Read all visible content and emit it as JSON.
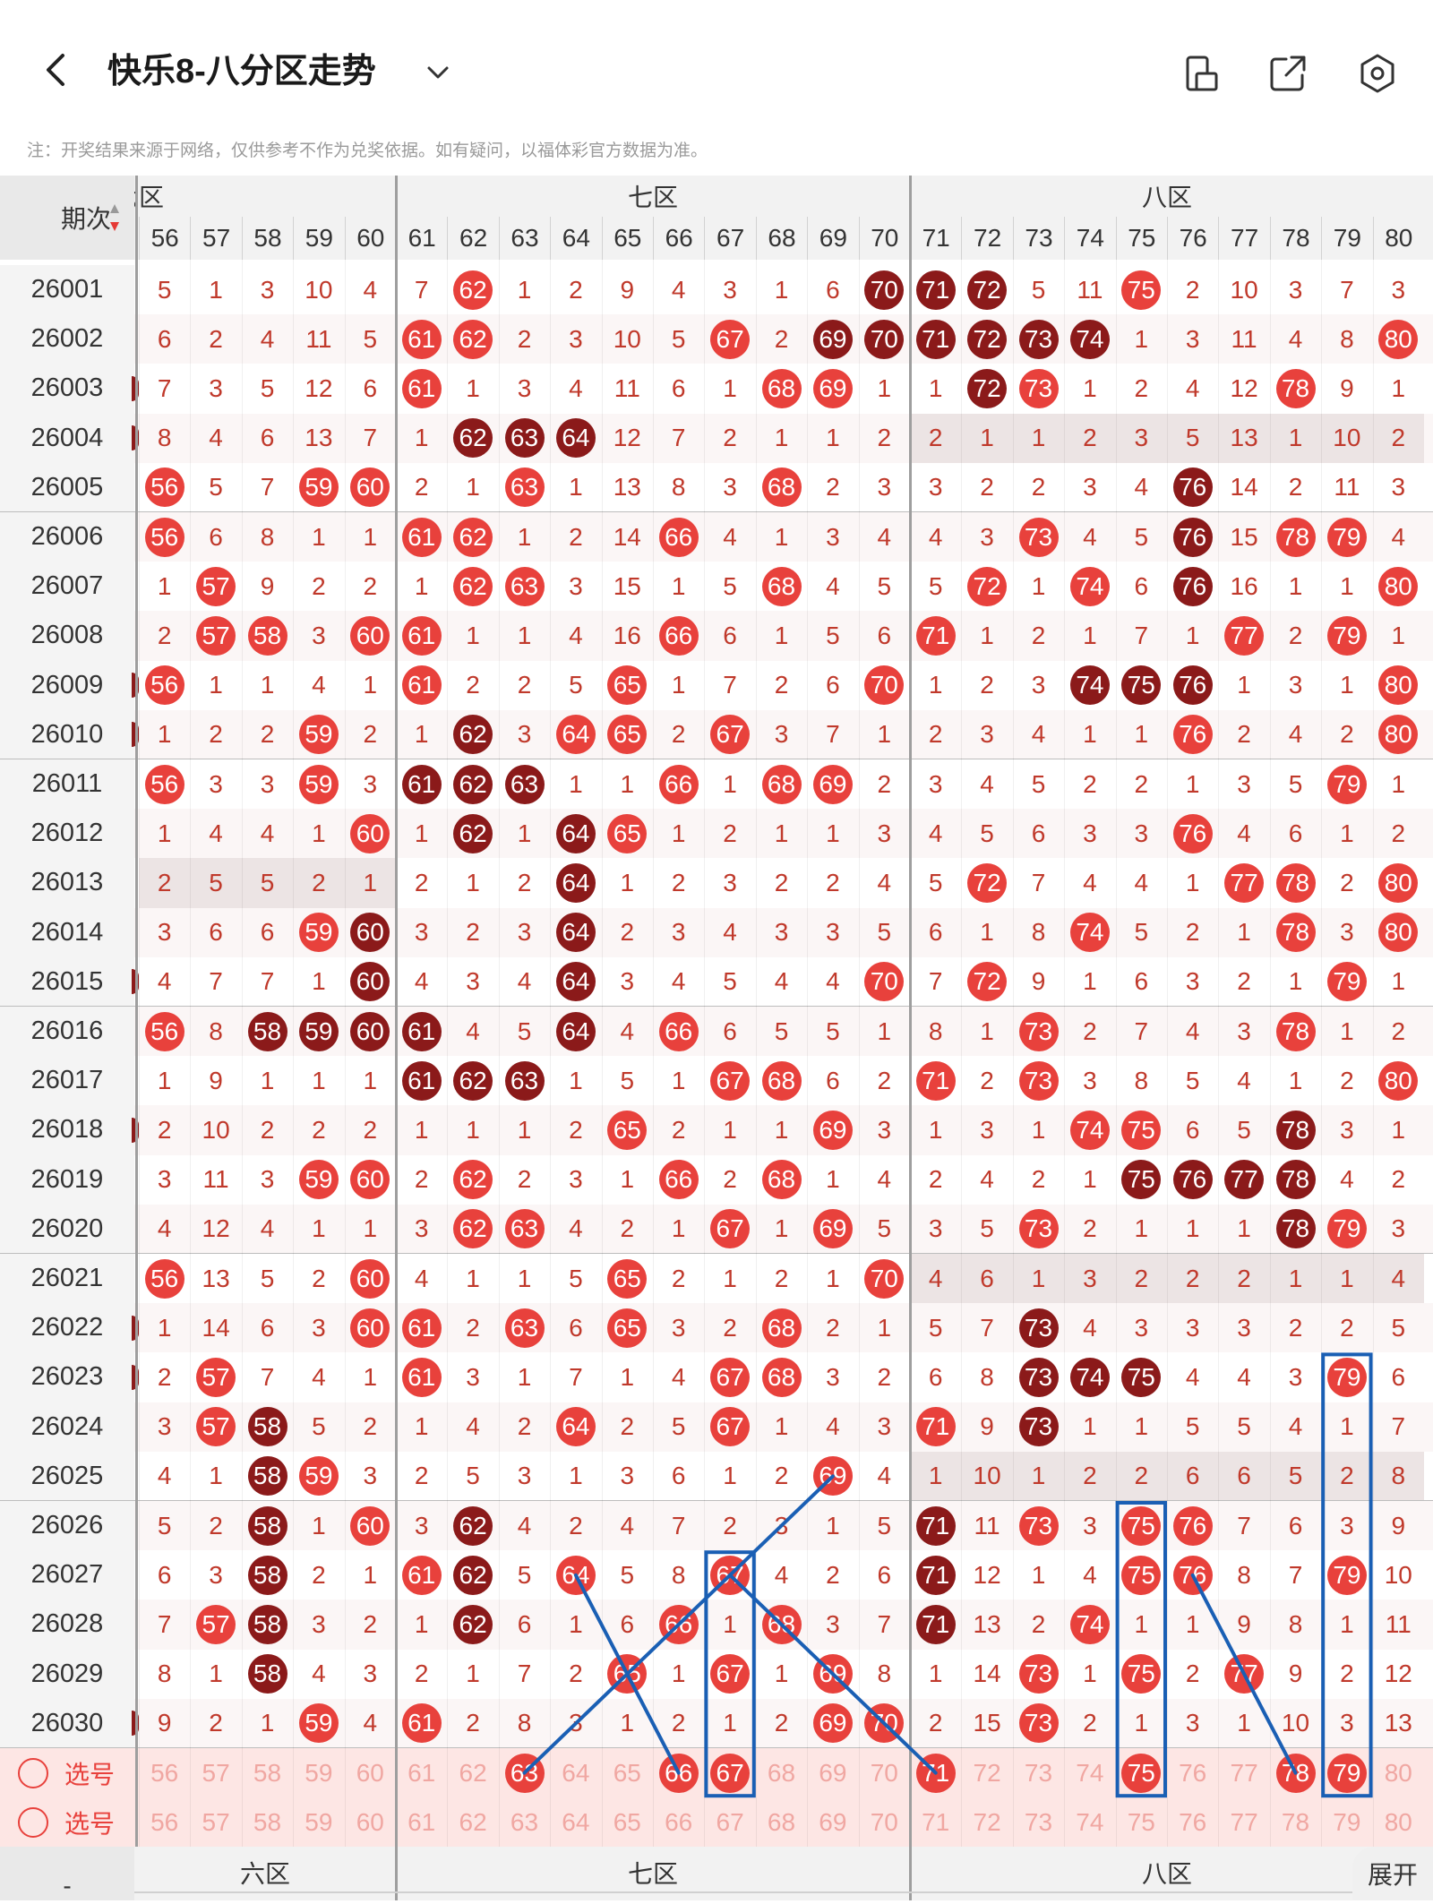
{
  "app": {
    "title": "快乐8-八分区走势",
    "notice": "注：开奖结果来源于网络，仅供参考不作为兑奖依据。如有疑问，以福体彩官方数据为准。",
    "icons": [
      "back-arrow-icon",
      "chevron-down-icon",
      "phone-layout-icon",
      "share-icon",
      "settings-icon"
    ]
  },
  "table": {
    "period_header": "期次",
    "sort_icon": "sort-up-down-icon",
    "zones": [
      {
        "label": "六区",
        "visible_label": "六区",
        "numbers": [
          56,
          57,
          58,
          59,
          60
        ]
      },
      {
        "label": "七区",
        "visible_label": "七区",
        "numbers": [
          61,
          62,
          63,
          64,
          65,
          66,
          67,
          68,
          69,
          70
        ]
      },
      {
        "label": "八区",
        "visible_label": "八区",
        "numbers": [
          71,
          72,
          73,
          74,
          75,
          76,
          77,
          78,
          79,
          80
        ]
      }
    ],
    "columns": [
      56,
      57,
      58,
      59,
      60,
      61,
      62,
      63,
      64,
      65,
      66,
      67,
      68,
      69,
      70,
      71,
      72,
      73,
      74,
      75,
      76,
      77,
      78,
      79,
      80
    ],
    "rows": [
      {
        "period": "26001",
        "cells": [
          5,
          1,
          3,
          10,
          4,
          7,
          62,
          1,
          2,
          9,
          4,
          3,
          1,
          6,
          70,
          71,
          72,
          5,
          11,
          75,
          2,
          10,
          3,
          7,
          3
        ]
      },
      {
        "period": "26002",
        "cells": [
          6,
          2,
          4,
          11,
          5,
          61,
          62,
          2,
          3,
          10,
          5,
          67,
          2,
          69,
          70,
          71,
          72,
          73,
          74,
          1,
          3,
          11,
          4,
          8,
          80
        ]
      },
      {
        "period": "26003",
        "cells": [
          7,
          3,
          5,
          12,
          6,
          61,
          1,
          3,
          4,
          11,
          6,
          1,
          68,
          69,
          1,
          1,
          72,
          73,
          1,
          2,
          4,
          12,
          78,
          9,
          1
        ]
      },
      {
        "period": "26004",
        "cells": [
          8,
          4,
          6,
          13,
          7,
          1,
          62,
          63,
          64,
          12,
          7,
          2,
          1,
          1,
          2,
          2,
          1,
          1,
          2,
          3,
          5,
          13,
          1,
          10,
          2
        ]
      },
      {
        "period": "26005",
        "cells": [
          56,
          5,
          7,
          59,
          60,
          2,
          1,
          63,
          1,
          13,
          8,
          3,
          68,
          2,
          3,
          3,
          2,
          2,
          3,
          4,
          76,
          14,
          2,
          11,
          3
        ]
      },
      {
        "period": "26006",
        "cells": [
          56,
          6,
          8,
          1,
          1,
          61,
          62,
          1,
          2,
          14,
          66,
          4,
          1,
          3,
          4,
          4,
          3,
          73,
          4,
          5,
          76,
          15,
          78,
          79,
          4
        ]
      },
      {
        "period": "26007",
        "cells": [
          1,
          57,
          9,
          2,
          2,
          1,
          62,
          63,
          3,
          15,
          1,
          5,
          68,
          4,
          5,
          5,
          72,
          1,
          74,
          6,
          76,
          16,
          1,
          1,
          80
        ]
      },
      {
        "period": "26008",
        "cells": [
          2,
          57,
          58,
          3,
          60,
          61,
          1,
          1,
          4,
          16,
          66,
          6,
          1,
          5,
          6,
          71,
          1,
          2,
          1,
          7,
          1,
          77,
          2,
          79,
          1
        ]
      },
      {
        "period": "26009",
        "cells": [
          56,
          1,
          1,
          4,
          1,
          61,
          2,
          2,
          5,
          65,
          1,
          7,
          2,
          6,
          70,
          1,
          2,
          3,
          74,
          75,
          76,
          1,
          3,
          1,
          80
        ]
      },
      {
        "period": "26010",
        "cells": [
          1,
          2,
          2,
          59,
          2,
          1,
          62,
          3,
          64,
          65,
          2,
          67,
          3,
          7,
          1,
          2,
          3,
          4,
          1,
          1,
          76,
          2,
          4,
          2,
          80
        ]
      },
      {
        "period": "26011",
        "cells": [
          56,
          3,
          3,
          59,
          3,
          61,
          62,
          63,
          1,
          1,
          66,
          1,
          68,
          69,
          2,
          3,
          4,
          5,
          2,
          2,
          1,
          3,
          5,
          79,
          1
        ]
      },
      {
        "period": "26012",
        "cells": [
          1,
          4,
          4,
          1,
          60,
          1,
          62,
          1,
          64,
          65,
          1,
          2,
          1,
          1,
          3,
          4,
          5,
          6,
          3,
          3,
          76,
          4,
          6,
          1,
          2
        ]
      },
      {
        "period": "26013",
        "cells": [
          2,
          5,
          5,
          2,
          1,
          2,
          1,
          2,
          64,
          1,
          2,
          3,
          2,
          2,
          4,
          5,
          72,
          7,
          4,
          4,
          1,
          77,
          78,
          2,
          80
        ]
      },
      {
        "period": "26014",
        "cells": [
          3,
          6,
          6,
          59,
          60,
          3,
          2,
          3,
          64,
          2,
          3,
          4,
          3,
          3,
          5,
          6,
          1,
          8,
          74,
          5,
          2,
          1,
          78,
          3,
          80
        ]
      },
      {
        "period": "26015",
        "cells": [
          4,
          7,
          7,
          1,
          60,
          4,
          3,
          4,
          64,
          3,
          4,
          5,
          4,
          4,
          70,
          7,
          72,
          9,
          1,
          6,
          3,
          2,
          1,
          79,
          1
        ]
      },
      {
        "period": "26016",
        "cells": [
          56,
          8,
          58,
          59,
          60,
          61,
          4,
          5,
          64,
          4,
          66,
          6,
          5,
          5,
          1,
          8,
          1,
          73,
          2,
          7,
          4,
          3,
          78,
          1,
          2
        ]
      },
      {
        "period": "26017",
        "cells": [
          1,
          9,
          1,
          1,
          1,
          61,
          62,
          63,
          1,
          5,
          1,
          67,
          68,
          6,
          2,
          71,
          2,
          73,
          3,
          8,
          5,
          4,
          1,
          2,
          80
        ]
      },
      {
        "period": "26018",
        "cells": [
          2,
          10,
          2,
          2,
          2,
          1,
          1,
          1,
          2,
          65,
          2,
          1,
          1,
          69,
          3,
          1,
          3,
          1,
          74,
          75,
          6,
          5,
          78,
          3,
          1
        ]
      },
      {
        "period": "26019",
        "cells": [
          3,
          11,
          3,
          59,
          60,
          2,
          62,
          2,
          3,
          1,
          66,
          2,
          68,
          1,
          4,
          2,
          4,
          2,
          1,
          75,
          76,
          77,
          78,
          4,
          2
        ]
      },
      {
        "period": "26020",
        "cells": [
          4,
          12,
          4,
          1,
          1,
          3,
          62,
          63,
          4,
          2,
          1,
          67,
          1,
          69,
          5,
          3,
          5,
          73,
          2,
          1,
          1,
          1,
          78,
          79,
          3
        ]
      },
      {
        "period": "26021",
        "cells": [
          56,
          13,
          5,
          2,
          60,
          4,
          1,
          1,
          5,
          65,
          2,
          1,
          2,
          1,
          70,
          4,
          6,
          1,
          3,
          2,
          2,
          2,
          1,
          1,
          4
        ]
      },
      {
        "period": "26022",
        "cells": [
          1,
          14,
          6,
          3,
          60,
          61,
          2,
          63,
          6,
          65,
          3,
          2,
          68,
          2,
          1,
          5,
          7,
          73,
          4,
          3,
          3,
          3,
          2,
          2,
          5
        ]
      },
      {
        "period": "26023",
        "cells": [
          2,
          57,
          7,
          4,
          1,
          61,
          3,
          1,
          7,
          1,
          4,
          67,
          68,
          3,
          2,
          6,
          8,
          73,
          74,
          75,
          4,
          4,
          3,
          79,
          6
        ]
      },
      {
        "period": "26024",
        "cells": [
          3,
          57,
          58,
          5,
          2,
          1,
          4,
          2,
          64,
          2,
          5,
          67,
          1,
          4,
          3,
          71,
          9,
          73,
          1,
          1,
          5,
          5,
          4,
          1,
          7
        ]
      },
      {
        "period": "26025",
        "cells": [
          4,
          1,
          58,
          59,
          3,
          2,
          5,
          3,
          1,
          3,
          6,
          1,
          2,
          69,
          4,
          1,
          10,
          1,
          2,
          2,
          6,
          6,
          5,
          2,
          8
        ]
      },
      {
        "period": "26026",
        "cells": [
          5,
          2,
          58,
          1,
          60,
          3,
          62,
          4,
          2,
          4,
          7,
          2,
          3,
          1,
          5,
          71,
          11,
          73,
          3,
          75,
          76,
          7,
          6,
          3,
          9
        ]
      },
      {
        "period": "26027",
        "cells": [
          6,
          3,
          58,
          2,
          1,
          61,
          62,
          5,
          64,
          5,
          8,
          67,
          4,
          2,
          6,
          71,
          12,
          1,
          4,
          75,
          76,
          8,
          7,
          79,
          10
        ]
      },
      {
        "period": "26028",
        "cells": [
          7,
          57,
          58,
          3,
          2,
          1,
          62,
          6,
          1,
          6,
          66,
          1,
          68,
          3,
          7,
          71,
          13,
          2,
          74,
          1,
          1,
          9,
          8,
          1,
          11
        ]
      },
      {
        "period": "26029",
        "cells": [
          8,
          1,
          58,
          4,
          3,
          2,
          1,
          7,
          2,
          65,
          1,
          67,
          1,
          69,
          8,
          1,
          14,
          73,
          1,
          75,
          2,
          77,
          9,
          2,
          12
        ]
      },
      {
        "period": "26030",
        "cells": [
          9,
          2,
          1,
          59,
          4,
          61,
          2,
          8,
          3,
          1,
          2,
          1,
          2,
          69,
          70,
          2,
          15,
          73,
          2,
          1,
          3,
          1,
          10,
          3,
          13
        ]
      }
    ],
    "select_rows": [
      {
        "label": "选号",
        "selected": [
          63,
          66,
          67,
          71,
          75,
          78,
          79
        ]
      },
      {
        "label": "选号",
        "selected": []
      }
    ],
    "left_edge_marks": [
      26003,
      26004,
      26009,
      26010,
      26015,
      26018,
      26022,
      26023,
      26030
    ],
    "highlight_rows": [
      26004,
      26025
    ],
    "highlight_segments": [
      {
        "period": "26004",
        "from_col": 71,
        "to_col": 80
      },
      {
        "period": "26013",
        "from_col": 56,
        "to_col": 60
      },
      {
        "period": "26021",
        "from_col": 71,
        "to_col": 80
      },
      {
        "period": "26025",
        "from_col": 71,
        "to_col": 80
      }
    ],
    "dark_balls": {
      "26001": [
        70,
        71,
        72
      ],
      "26002": [
        69,
        70,
        71,
        72,
        73,
        74
      ],
      "26003": [
        72
      ],
      "26004": [
        62,
        63,
        64
      ],
      "26005": [
        76
      ],
      "26006": [
        76
      ],
      "26007": [
        76
      ],
      "26009": [
        74,
        75,
        76
      ],
      "26010": [
        62
      ],
      "26011": [
        61,
        62,
        63
      ],
      "26012": [
        62,
        64
      ],
      "26013": [
        64
      ],
      "26014": [
        60,
        64
      ],
      "26015": [
        60,
        64
      ],
      "26016": [
        58,
        59,
        60,
        61,
        64
      ],
      "26017": [
        61,
        62,
        63
      ],
      "26018": [
        78
      ],
      "26019": [
        75,
        76,
        77,
        78
      ],
      "26020": [
        78
      ],
      "26022": [
        73
      ],
      "26023": [
        73,
        74,
        75
      ],
      "26024": [
        58,
        73
      ],
      "26025": [
        58
      ],
      "26026": [
        58,
        62,
        71
      ],
      "26027": [
        58,
        62,
        71
      ],
      "26028": [
        58,
        62,
        71
      ],
      "26029": [
        58
      ]
    },
    "expand_label": "展开",
    "footer_zone_labels": [
      "六区",
      "七区",
      "八区"
    ],
    "footer_dash": "-"
  },
  "annotations": {
    "color": "#1a5fb4",
    "boxes": [
      {
        "col": 67,
        "from": "26027",
        "to": "select"
      },
      {
        "col": 75,
        "from": "26026",
        "to": "select"
      },
      {
        "col": 79,
        "from": "26023",
        "to": "select"
      }
    ],
    "lines": [
      {
        "from": {
          "col": 69,
          "row": "26025"
        },
        "to": {
          "col": 63,
          "row": "select"
        }
      },
      {
        "from": {
          "col": 64,
          "row": "26027"
        },
        "to": {
          "col": 66,
          "row": "select"
        }
      },
      {
        "from": {
          "col": 67,
          "row": "26027"
        },
        "to": {
          "col": 71,
          "row": "select"
        }
      },
      {
        "from": {
          "col": 76,
          "row": "26027"
        },
        "to": {
          "col": 78,
          "row": "select"
        }
      }
    ]
  },
  "colors": {
    "red": "#e8413c",
    "dark": "#8b1a1a",
    "number_text": "#c0392b",
    "header_bg": "#f2f2f2",
    "select_bg": "#fde6e4",
    "zone_divider": "#9e9e9e"
  }
}
